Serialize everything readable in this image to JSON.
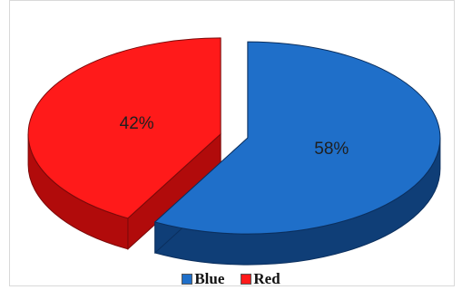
{
  "chart_data": {
    "type": "pie",
    "style": "3d-exploded",
    "categories": [
      "Blue",
      "Red"
    ],
    "values": [
      58,
      42
    ],
    "labels": [
      "58%",
      "42%"
    ],
    "legend_position": "bottom",
    "colors": {
      "Blue": {
        "top": "#1f6fc9",
        "side": "#0f3e77",
        "edge": "#0b2f5e"
      },
      "Red": {
        "top": "#ff1a1a",
        "side": "#b10b0b",
        "edge": "#7a0a0a"
      }
    }
  },
  "legend": {
    "items": [
      {
        "label": "Blue",
        "color": "#1f6fc9"
      },
      {
        "label": "Red",
        "color": "#ff1a1a"
      }
    ]
  }
}
